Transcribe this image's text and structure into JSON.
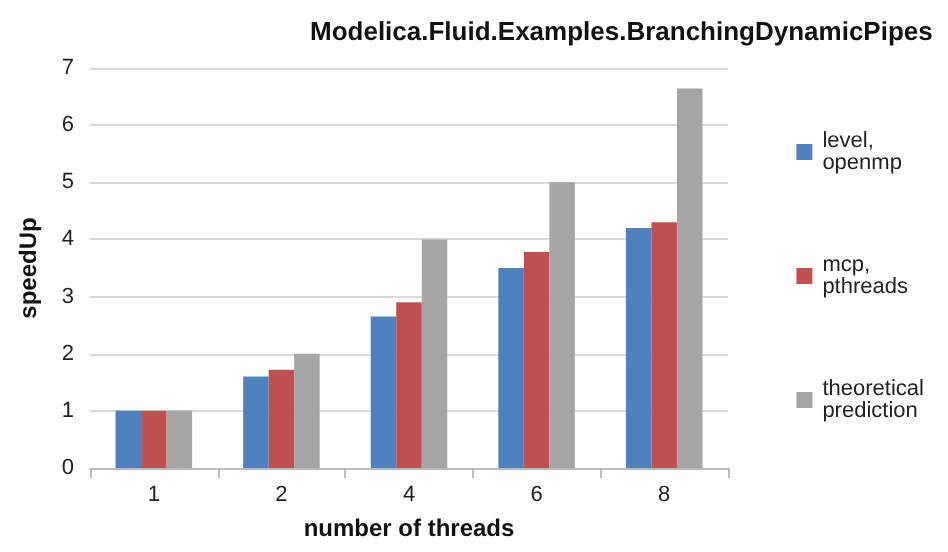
{
  "chart_data": {
    "type": "bar",
    "title": "Modelica.Fluid.Examples.BranchingDynamicPipes",
    "xlabel": "number of threads",
    "ylabel": "speedUp",
    "categories": [
      "1",
      "2",
      "4",
      "6",
      "8"
    ],
    "series": [
      {
        "name": "level, openmp",
        "color": "#4f81bd",
        "values": [
          1,
          1.6,
          2.65,
          3.5,
          4.2
        ]
      },
      {
        "name": "mcp, pthreads",
        "color": "#c0504d",
        "values": [
          1,
          1.72,
          2.9,
          3.78,
          4.3
        ]
      },
      {
        "name": "theoretical prediction",
        "color": "#a5a5a5",
        "values": [
          1,
          2,
          4,
          5,
          6.64
        ]
      }
    ],
    "ylim": [
      0,
      7
    ],
    "yticks": [
      0,
      1,
      2,
      3,
      4,
      5,
      6,
      7
    ],
    "grid": "y",
    "legend": "right"
  }
}
